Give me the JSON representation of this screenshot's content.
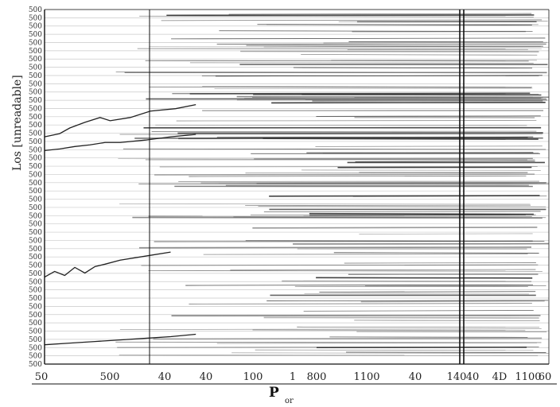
{
  "chart_data": {
    "type": "line",
    "title": "",
    "xlabel": "P",
    "xlabel_sub": "or",
    "ylabel": "Los [unreadable]",
    "x_tick_labels": [
      "50",
      "500",
      "40",
      "40",
      "100",
      "1",
      "800",
      "1100",
      "40",
      "140",
      "40",
      "4D",
      "1100",
      "60"
    ],
    "ylim": [
      0,
      44
    ],
    "y_tick_labels": [
      "500",
      "500",
      "500",
      "500",
      "500",
      "500",
      "500",
      "500",
      "500",
      "500",
      "500",
      "500",
      "500",
      "500",
      "500",
      "500",
      "500",
      "500",
      "500",
      "500",
      "500",
      "500",
      "500",
      "500",
      "500",
      "500",
      "500",
      "500",
      "500",
      "500",
      "500",
      "500",
      "500",
      "500",
      "500",
      "500",
      "500",
      "500",
      "500",
      "500",
      "500",
      "500",
      "500",
      "500"
    ],
    "grid": true,
    "series": [
      {
        "x": [
          0,
          3,
          5,
          8,
          11,
          13,
          17,
          21,
          26,
          30
        ],
        "y": [
          28.2,
          28.6,
          29.3,
          30.0,
          30.6,
          30.2,
          30.6,
          31.4,
          31.7,
          32.2
        ]
      },
      {
        "x": [
          0,
          3,
          6,
          9,
          12,
          15,
          20,
          25,
          30
        ],
        "y": [
          26.5,
          26.7,
          27.0,
          27.2,
          27.5,
          27.5,
          27.8,
          28.2,
          28.5
        ]
      },
      {
        "x": [
          0,
          2,
          4,
          6,
          8,
          10,
          12,
          15,
          20,
          25
        ],
        "y": [
          10.8,
          11.5,
          11.0,
          12.0,
          11.3,
          12.1,
          12.4,
          12.9,
          13.4,
          13.9
        ]
      },
      {
        "x": [
          0,
          5,
          10,
          15,
          20,
          25,
          30
        ],
        "y": [
          2.4,
          2.6,
          2.8,
          3.0,
          3.2,
          3.4,
          3.7
        ]
      }
    ]
  }
}
